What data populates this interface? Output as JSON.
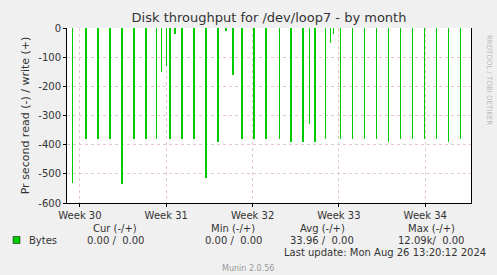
{
  "chart_data": {
    "type": "bar",
    "title": "Disk throughput for /dev/loop7 - by month",
    "y_label": "Pr second read (-) / write (+)",
    "color": "#00cc00",
    "grid": true,
    "x": [
      29.919,
      30.07,
      30.209,
      30.348,
      30.487,
      30.626,
      30.765,
      30.892,
      30.95,
      30.997,
      31.043,
      31.101,
      31.182,
      31.321,
      31.46,
      31.599,
      31.692,
      31.773,
      31.877,
      32.016,
      32.155,
      32.306,
      32.445,
      32.584,
      32.654,
      32.723,
      32.839,
      32.897,
      32.932,
      33.013,
      33.152,
      33.291,
      33.43,
      33.569,
      33.708,
      33.847,
      33.986,
      34.125,
      34.264,
      34.403
    ],
    "values": [
      -530,
      -380,
      -380,
      -380,
      -535,
      -380,
      -380,
      -380,
      -150,
      -130,
      -380,
      -20,
      -380,
      -380,
      -515,
      -390,
      -10,
      -160,
      -380,
      -380,
      -380,
      -380,
      -390,
      -390,
      -330,
      -390,
      -380,
      -50,
      -20,
      -380,
      -380,
      -380,
      -380,
      -390,
      -380,
      -380,
      -380,
      -380,
      -390,
      -380
    ],
    "xlim": [
      29.85,
      34.53
    ],
    "xticks": [
      {
        "value": 30,
        "label": "Week 30"
      },
      {
        "value": 31,
        "label": "Week 31"
      },
      {
        "value": 32,
        "label": "Week 32"
      },
      {
        "value": 33,
        "label": "Week 33"
      },
      {
        "value": 34,
        "label": "Week 34"
      }
    ],
    "ylim": [
      -600,
      0
    ],
    "yticks": [
      -600,
      -500,
      -400,
      -300,
      -200,
      -100,
      0
    ],
    "legend_table": {
      "columns": [
        "Cur (-/+)",
        "Min (-/+)",
        "Avg (-/+)",
        "Max (-/+)"
      ],
      "rows": [
        {
          "name": "Bytes",
          "cells": [
            "0.00 /  0.00",
            "0.00 /  0.00",
            "33.96 /  0.00",
            "12.09k/  0.00"
          ]
        }
      ]
    },
    "last_update": "Last update: Mon Aug 26 13:20:12 2024",
    "footer": "Munin 2.0.56",
    "watermark": "RRDTOOL / TOBI OETIKER"
  }
}
